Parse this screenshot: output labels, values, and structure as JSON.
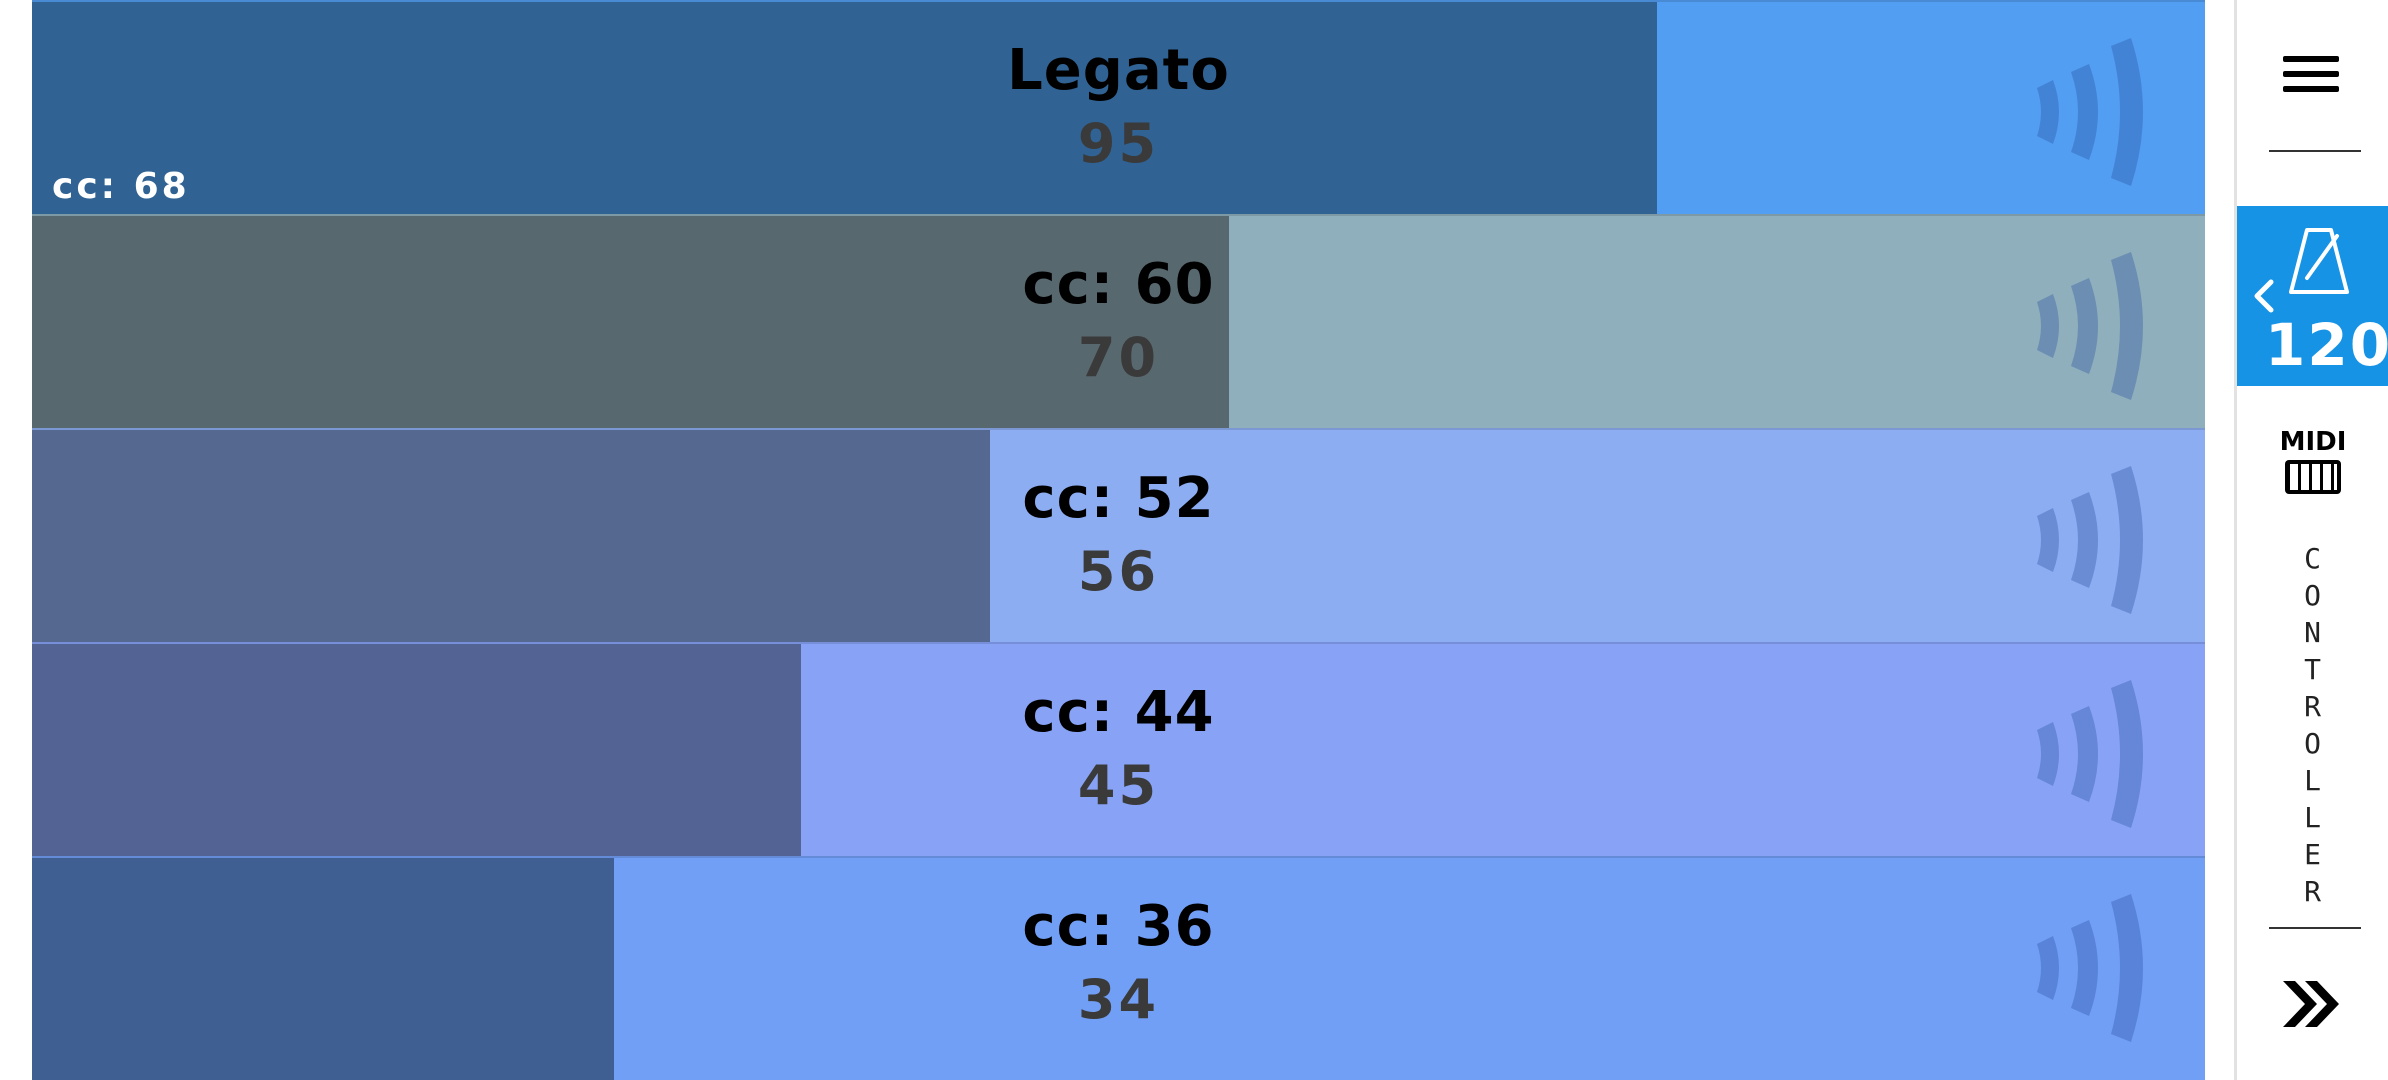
{
  "sliders": [
    {
      "title": "Legato",
      "value": "95",
      "cc_tag": "cc: 68",
      "fill_fraction": 0.748,
      "fill_color": "#306394",
      "track_color": "#529ef2"
    },
    {
      "title": "cc: 60",
      "value": "70",
      "cc_tag": "",
      "fill_fraction": 0.551,
      "fill_color": "#58686f",
      "track_color": "#8fafbc"
    },
    {
      "title": "cc: 52",
      "value": "56",
      "cc_tag": "",
      "fill_fraction": 0.441,
      "fill_color": "#55688f",
      "track_color": "#8dadf2"
    },
    {
      "title": "cc: 44",
      "value": "45",
      "cc_tag": "",
      "fill_fraction": 0.354,
      "fill_color": "#526394",
      "track_color": "#88a3f6"
    },
    {
      "title": "cc: 36",
      "value": "34",
      "cc_tag": "",
      "fill_fraction": 0.268,
      "fill_color": "#3f5f93",
      "track_color": "#729ff6"
    }
  ],
  "sidebar": {
    "menu_icon": "hamburger-menu-icon",
    "tempo": {
      "value": "120",
      "icon": "metronome-icon",
      "expand_icon": "chevron-left-icon",
      "color": "#1793e6"
    },
    "midi_icon": "midi-keyboard-icon",
    "vertical_label": [
      "C",
      "O",
      "N",
      "T",
      "R",
      "O",
      "L",
      "L",
      "E",
      "R"
    ],
    "next_icon": "double-chevron-right-icon"
  }
}
